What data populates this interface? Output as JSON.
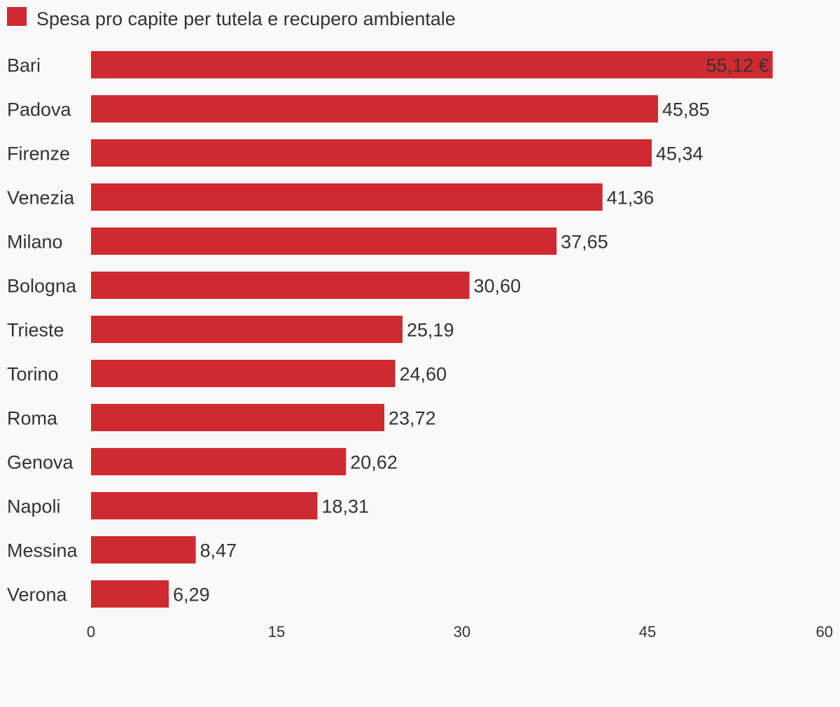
{
  "chart_data": {
    "type": "bar",
    "orientation": "horizontal",
    "title": "",
    "xlabel": "",
    "ylabel": "",
    "legend": {
      "placement": "top-left",
      "entries": [
        "Spesa pro capite per tutela e recupero ambientale"
      ]
    },
    "categories": [
      "Bari",
      "Padova",
      "Firenze",
      "Venezia",
      "Milano",
      "Bologna",
      "Trieste",
      "Torino",
      "Roma",
      "Genova",
      "Napoli",
      "Messina",
      "Verona"
    ],
    "series": [
      {
        "name": "Spesa pro capite per tutela e recupero ambientale",
        "color": "#cf2a30",
        "values": [
          55.12,
          45.85,
          45.34,
          41.36,
          37.65,
          30.6,
          25.19,
          24.6,
          23.72,
          20.62,
          18.31,
          8.47,
          6.29
        ],
        "data_labels": [
          "55,12 €",
          "45,85",
          "45,34",
          "41,36",
          "37,65",
          "30,60",
          "25,19",
          "24,60",
          "23,72",
          "20,62",
          "18,31",
          "8,47",
          "6,29"
        ]
      }
    ],
    "xlim": [
      0,
      60
    ],
    "x_ticks": [
      0,
      15,
      30,
      45,
      60
    ],
    "x_tick_labels": [
      "0",
      "15",
      "30",
      "45",
      "60"
    ],
    "grid": false
  }
}
